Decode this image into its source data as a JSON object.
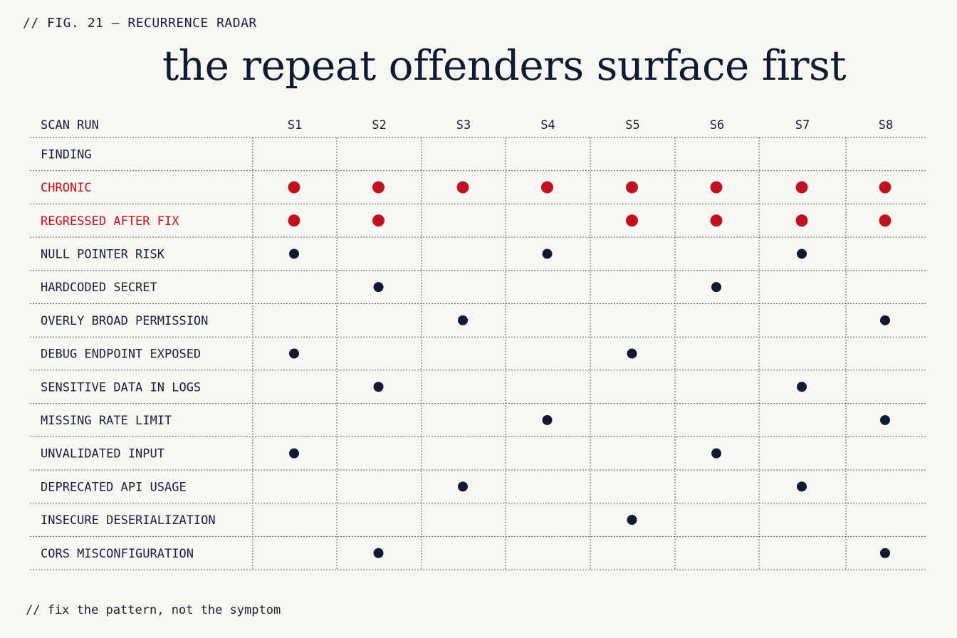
{
  "fig_label": "// FIG. 21 — RECURRENCE RADAR",
  "title": "the repeat offenders surface first",
  "footer_note": "// fix the pattern, not the symptom",
  "colors": {
    "background": "#f8f6f0",
    "ink": "#17223d",
    "dot": "#0f1a33",
    "accent": "#c0111f",
    "grid": "#5a6070"
  },
  "chart_data": {
    "type": "table",
    "column_header": "SCAN RUN",
    "row_header": "FINDING",
    "columns": [
      "S1",
      "S2",
      "S3",
      "S4",
      "S5",
      "S6",
      "S7",
      "S8"
    ],
    "rows": [
      {
        "label": "CHRONIC",
        "highlight": true,
        "hits": [
          "S1",
          "S2",
          "S3",
          "S4",
          "S5",
          "S6",
          "S7",
          "S8"
        ]
      },
      {
        "label": "REGRESSED AFTER FIX",
        "highlight": true,
        "hits": [
          "S1",
          "S2",
          "S5",
          "S6",
          "S7",
          "S8"
        ]
      },
      {
        "label": "NULL POINTER RISK",
        "highlight": false,
        "hits": [
          "S1",
          "S4",
          "S7"
        ]
      },
      {
        "label": "HARDCODED SECRET",
        "highlight": false,
        "hits": [
          "S2",
          "S6"
        ]
      },
      {
        "label": "OVERLY BROAD PERMISSION",
        "highlight": false,
        "hits": [
          "S3",
          "S8"
        ]
      },
      {
        "label": "DEBUG ENDPOINT EXPOSED",
        "highlight": false,
        "hits": [
          "S1",
          "S5"
        ]
      },
      {
        "label": "SENSITIVE DATA IN LOGS",
        "highlight": false,
        "hits": [
          "S2",
          "S7"
        ]
      },
      {
        "label": "MISSING RATE LIMIT",
        "highlight": false,
        "hits": [
          "S4",
          "S8"
        ]
      },
      {
        "label": "UNVALIDATED INPUT",
        "highlight": false,
        "hits": [
          "S1",
          "S6"
        ]
      },
      {
        "label": "DEPRECATED API USAGE",
        "highlight": false,
        "hits": [
          "S3",
          "S7"
        ]
      },
      {
        "label": "INSECURE DESERIALIZATION",
        "highlight": false,
        "hits": [
          "S5"
        ]
      },
      {
        "label": "CORS MISCONFIGURATION",
        "highlight": false,
        "hits": [
          "S2",
          "S8"
        ]
      }
    ]
  }
}
